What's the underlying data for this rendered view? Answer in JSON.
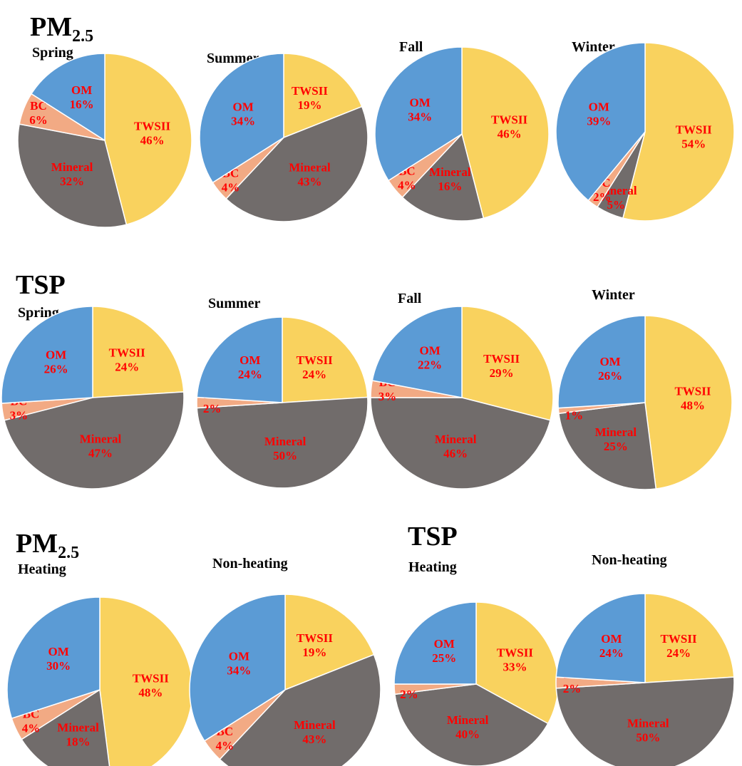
{
  "headings": [
    {
      "main": "PM",
      "sub": "2.5"
    },
    {
      "main": "TSP"
    },
    {
      "main": "PM",
      "sub": "2.5"
    },
    {
      "main": "TSP"
    }
  ],
  "chart_data": [
    {
      "type": "pie",
      "title": "Spring",
      "categories": [
        "TWSII",
        "Mineral",
        "BC",
        "OM"
      ],
      "values": [
        46,
        32,
        6,
        16
      ],
      "value_labels": [
        "46%",
        "32%",
        "6%",
        "16%"
      ],
      "colors": [
        "#f9d25e",
        "#716c6b",
        "#f2aa84",
        "#5b9bd5"
      ]
    },
    {
      "type": "pie",
      "title": "Summer",
      "categories": [
        "TWSII",
        "Mineral",
        "BC",
        "OM"
      ],
      "values": [
        19,
        43,
        4,
        34
      ],
      "value_labels": [
        "19%",
        "43%",
        "4%",
        "34%"
      ],
      "colors": [
        "#f9d25e",
        "#716c6b",
        "#f2aa84",
        "#5b9bd5"
      ]
    },
    {
      "type": "pie",
      "title": "Fall",
      "categories": [
        "TWSII",
        "Mineral",
        "BC",
        "OM"
      ],
      "values": [
        46,
        16,
        4,
        34
      ],
      "value_labels": [
        "46%",
        "16%",
        "4%",
        "34%"
      ],
      "colors": [
        "#f9d25e",
        "#716c6b",
        "#f2aa84",
        "#5b9bd5"
      ]
    },
    {
      "type": "pie",
      "title": "Winter",
      "categories": [
        "TWSII",
        "Mineral",
        "BC",
        "OM"
      ],
      "values": [
        54,
        5,
        2,
        39
      ],
      "value_labels": [
        "54%",
        "5%",
        "2%",
        "39%"
      ],
      "colors": [
        "#f9d25e",
        "#716c6b",
        "#f2aa84",
        "#5b9bd5"
      ]
    },
    {
      "type": "pie",
      "title": "Spring",
      "categories": [
        "TWSII",
        "Mineral",
        "BC",
        "OM"
      ],
      "values": [
        24,
        47,
        3,
        26
      ],
      "value_labels": [
        "24%",
        "47%",
        "3%",
        "26%"
      ],
      "colors": [
        "#f9d25e",
        "#716c6b",
        "#f2aa84",
        "#5b9bd5"
      ]
    },
    {
      "type": "pie",
      "title": "Summer",
      "categories": [
        "TWSII",
        "Mineral",
        "BC",
        "OM"
      ],
      "values": [
        24,
        50,
        2,
        24
      ],
      "value_labels": [
        "24%",
        "50%",
        "2%",
        "24%"
      ],
      "colors": [
        "#f9d25e",
        "#716c6b",
        "#f2aa84",
        "#5b9bd5"
      ]
    },
    {
      "type": "pie",
      "title": "Fall",
      "categories": [
        "TWSII",
        "Mineral",
        "BC",
        "OM"
      ],
      "values": [
        29,
        46,
        3,
        22
      ],
      "value_labels": [
        "29%",
        "46%",
        "3%",
        "22%"
      ],
      "colors": [
        "#f9d25e",
        "#716c6b",
        "#f2aa84",
        "#5b9bd5"
      ]
    },
    {
      "type": "pie",
      "title": "Winter",
      "categories": [
        "TWSII",
        "Mineral",
        "BC",
        "OM"
      ],
      "values": [
        48,
        25,
        1,
        26
      ],
      "value_labels": [
        "48%",
        "25%",
        "1%",
        "26%"
      ],
      "colors": [
        "#f9d25e",
        "#716c6b",
        "#f2aa84",
        "#5b9bd5"
      ]
    },
    {
      "type": "pie",
      "title": "Heating",
      "categories": [
        "TWSII",
        "Mineral",
        "BC",
        "OM"
      ],
      "values": [
        48,
        18,
        4,
        30
      ],
      "value_labels": [
        "48%",
        "18%",
        "4%",
        "30%"
      ],
      "colors": [
        "#f9d25e",
        "#716c6b",
        "#f2aa84",
        "#5b9bd5"
      ]
    },
    {
      "type": "pie",
      "title": "Non-heating",
      "categories": [
        "TWSII",
        "Mineral",
        "BC",
        "OM"
      ],
      "values": [
        19,
        43,
        4,
        34
      ],
      "value_labels": [
        "19%",
        "43%",
        "4%",
        "34%"
      ],
      "colors": [
        "#f9d25e",
        "#716c6b",
        "#f2aa84",
        "#5b9bd5"
      ]
    },
    {
      "type": "pie",
      "title": "Heating",
      "categories": [
        "TWSII",
        "Mineral",
        "BC",
        "OM"
      ],
      "values": [
        33,
        40,
        2,
        25
      ],
      "value_labels": [
        "33%",
        "40%",
        "2%",
        "25%"
      ],
      "colors": [
        "#f9d25e",
        "#716c6b",
        "#f2aa84",
        "#5b9bd5"
      ]
    },
    {
      "type": "pie",
      "title": "Non-heating",
      "categories": [
        "TWSII",
        "Mineral",
        "BC",
        "OM"
      ],
      "values": [
        24,
        50,
        2,
        24
      ],
      "value_labels": [
        "24%",
        "50%",
        "2%",
        "24%"
      ],
      "colors": [
        "#f9d25e",
        "#716c6b",
        "#f2aa84",
        "#5b9bd5"
      ]
    }
  ]
}
